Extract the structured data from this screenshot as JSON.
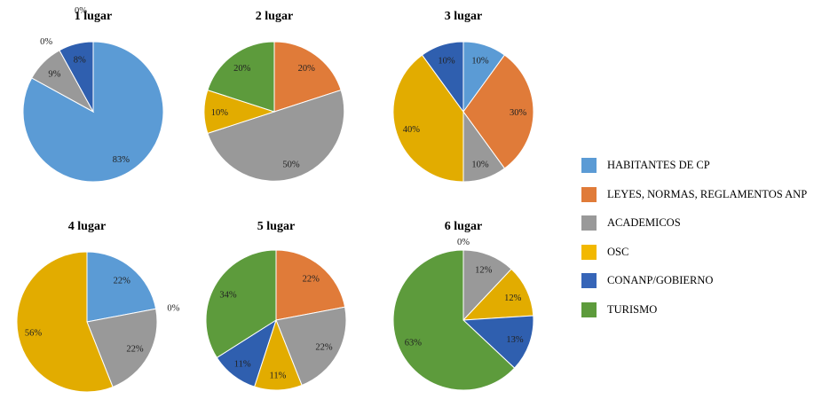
{
  "chart_data": [
    {
      "type": "pie",
      "title": "1 lugar",
      "slices": [
        {
          "category": "HABITANTES DE CP",
          "value": 83,
          "label": "83%"
        },
        {
          "category": "LEYES, NORMAS, REGLAMENTOS ANP",
          "value": 0,
          "label": ""
        },
        {
          "category": "ACADEMICOS",
          "value": 9,
          "label": "9%"
        },
        {
          "category": "OSC",
          "value": 0,
          "label": "0%"
        },
        {
          "category": "CONANP/GOBIERNO",
          "value": 8,
          "label": "8%"
        },
        {
          "category": "TURISMO",
          "value": 0,
          "label": "0%"
        }
      ]
    },
    {
      "type": "pie",
      "title": "2 lugar",
      "slices": [
        {
          "category": "HABITANTES DE CP",
          "value": 0,
          "label": ""
        },
        {
          "category": "LEYES, NORMAS, REGLAMENTOS ANP",
          "value": 20,
          "label": "20%"
        },
        {
          "category": "ACADEMICOS",
          "value": 50,
          "label": "50%"
        },
        {
          "category": "OSC",
          "value": 10,
          "label": "10%"
        },
        {
          "category": "CONANP/GOBIERNO",
          "value": 0,
          "label": ""
        },
        {
          "category": "TURISMO",
          "value": 20,
          "label": "20%"
        }
      ]
    },
    {
      "type": "pie",
      "title": "3 lugar",
      "slices": [
        {
          "category": "HABITANTES DE CP",
          "value": 10,
          "label": "10%"
        },
        {
          "category": "LEYES, NORMAS, REGLAMENTOS ANP",
          "value": 30,
          "label": "30%"
        },
        {
          "category": "ACADEMICOS",
          "value": 10,
          "label": "10%"
        },
        {
          "category": "OSC",
          "value": 40,
          "label": "40%"
        },
        {
          "category": "CONANP/GOBIERNO",
          "value": 10,
          "label": "10%"
        },
        {
          "category": "TURISMO",
          "value": 0,
          "label": ""
        }
      ]
    },
    {
      "type": "pie",
      "title": "4 lugar",
      "slices": [
        {
          "category": "HABITANTES DE CP",
          "value": 22,
          "label": "22%"
        },
        {
          "category": "LEYES, NORMAS, REGLAMENTOS ANP",
          "value": 0,
          "label": "0%"
        },
        {
          "category": "ACADEMICOS",
          "value": 22,
          "label": "22%"
        },
        {
          "category": "OSC",
          "value": 56,
          "label": "56%"
        },
        {
          "category": "CONANP/GOBIERNO",
          "value": 0,
          "label": ""
        },
        {
          "category": "TURISMO",
          "value": 0,
          "label": ""
        }
      ]
    },
    {
      "type": "pie",
      "title": "5 lugar",
      "slices": [
        {
          "category": "HABITANTES DE CP",
          "value": 0,
          "label": ""
        },
        {
          "category": "LEYES, NORMAS, REGLAMENTOS ANP",
          "value": 22,
          "label": "22%"
        },
        {
          "category": "ACADEMICOS",
          "value": 22,
          "label": "22%"
        },
        {
          "category": "OSC",
          "value": 11,
          "label": "11%"
        },
        {
          "category": "CONANP/GOBIERNO",
          "value": 11,
          "label": "11%"
        },
        {
          "category": "TURISMO",
          "value": 34,
          "label": "34%"
        }
      ]
    },
    {
      "type": "pie",
      "title": "6 lugar",
      "slices": [
        {
          "category": "HABITANTES DE CP",
          "value": 0,
          "label": "0%"
        },
        {
          "category": "LEYES, NORMAS, REGLAMENTOS ANP",
          "value": 0,
          "label": ""
        },
        {
          "category": "ACADEMICOS",
          "value": 12,
          "label": "12%"
        },
        {
          "category": "OSC",
          "value": 12,
          "label": "12%"
        },
        {
          "category": "CONANP/GOBIERNO",
          "value": 13,
          "label": "13%"
        },
        {
          "category": "TURISMO",
          "value": 63,
          "label": "63%"
        }
      ]
    }
  ],
  "legend": {
    "placement": "right",
    "items": [
      {
        "label": "HABITANTES DE CP",
        "color": "#5b9bd5"
      },
      {
        "label": "LEYES, NORMAS, REGLAMENTOS ANP",
        "color": "#e07b39"
      },
      {
        "label": "ACADEMICOS",
        "color": "#999999"
      },
      {
        "label": "OSC",
        "color": "#f2b800"
      },
      {
        "label": "CONANP/GOBIERNO",
        "color": "#3665b8"
      },
      {
        "label": "TURISMO",
        "color": "#5d9b3c"
      }
    ]
  },
  "colors": {
    "HABITANTES DE CP": "#5b9bd5",
    "LEYES, NORMAS, REGLAMENTOS ANP": "#e07b39",
    "ACADEMICOS": "#999999",
    "OSC": "#e2ac00",
    "CONANP/GOBIERNO": "#2f5faf",
    "TURISMO": "#5d9b3c"
  }
}
